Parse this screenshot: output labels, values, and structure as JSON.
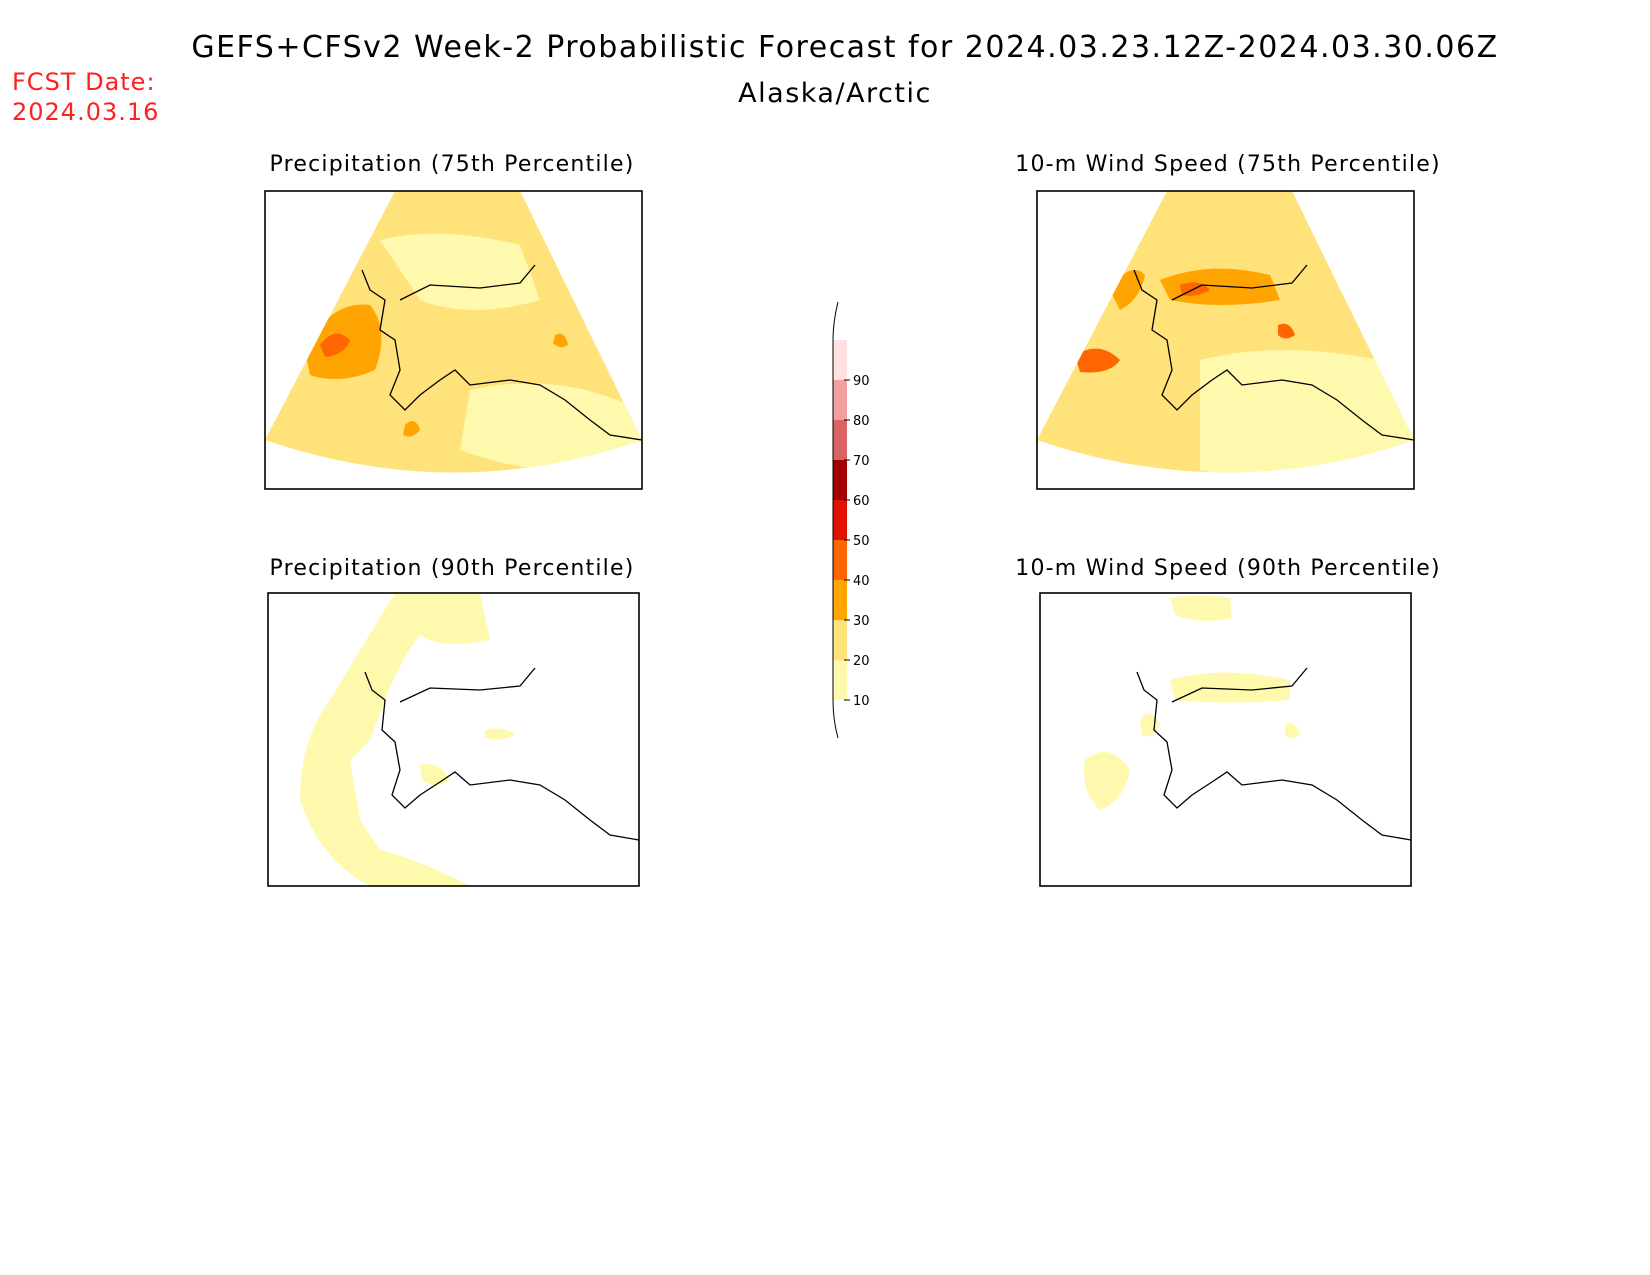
{
  "header": {
    "title": "GEFS+CFSv2 Week-2 Probabilistic Forecast for 2024.03.23.12Z-2024.03.30.06Z",
    "region": "Alaska/Arctic",
    "fcst_label": "FCST Date:",
    "fcst_date": "2024.03.16"
  },
  "panels": [
    {
      "title": "Precipitation (75th Percentile)",
      "variable": "precipitation",
      "percentile": 75
    },
    {
      "title": "10-m Wind Speed (75th Percentile)",
      "variable": "10-m wind speed",
      "percentile": 75
    },
    {
      "title": "Precipitation (90th Percentile)",
      "variable": "precipitation",
      "percentile": 90
    },
    {
      "title": "10-m Wind Speed (90th Percentile)",
      "variable": "10-m wind speed",
      "percentile": 90
    }
  ],
  "colorbar": {
    "levels": [
      {
        "label": "10",
        "color": "#fff9ad"
      },
      {
        "label": "20",
        "color": "#ffe27a"
      },
      {
        "label": "30",
        "color": "#ffa400"
      },
      {
        "label": "40",
        "color": "#ff6500"
      },
      {
        "label": "50",
        "color": "#e21200"
      },
      {
        "label": "60",
        "color": "#a50000"
      },
      {
        "label": "70",
        "color": "#da6363"
      },
      {
        "label": "80",
        "color": "#f0a0a0"
      },
      {
        "label": "90",
        "color": "#ffe1e1"
      }
    ]
  }
}
